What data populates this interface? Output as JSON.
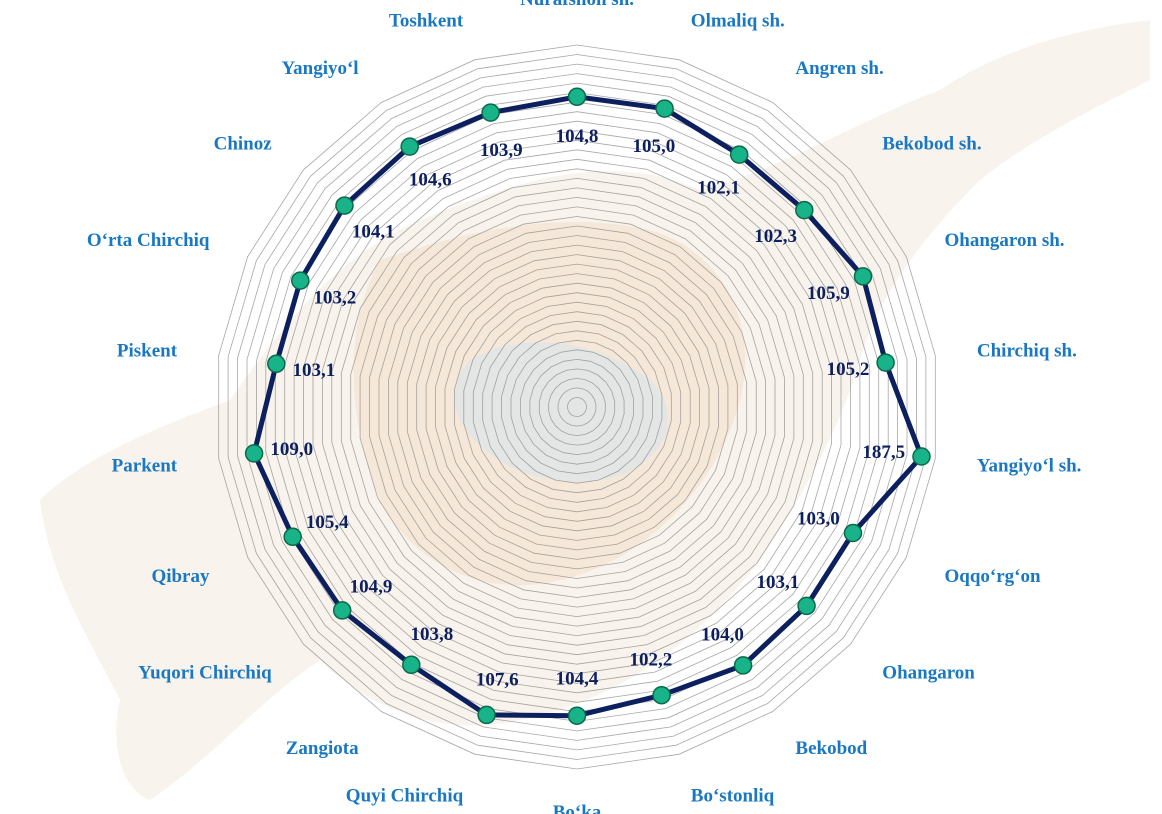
{
  "chart_data": {
    "type": "radar",
    "title": "",
    "categories": [
      "Nurafshon sh.",
      "Olmaliq sh.",
      "Angren sh.",
      "Bekobod sh.",
      "Ohangaron sh.",
      "Chirchiq sh.",
      "Yangiyo‘l sh.",
      "Oqqo‘rg‘on",
      "Ohangaron",
      "Bekobod",
      "Bo‘stonliq",
      "Bo‘ka",
      "Quyi Chirchiq",
      "Zangiota",
      "Yuqori Chirchiq",
      "Qibray",
      "Parkent",
      "Piskent",
      "O‘rta Chirchiq",
      "Chinoz",
      "Yangiyo‘l",
      "Toshkent"
    ],
    "series": [
      {
        "values": [
          104.8,
          105.0,
          102.1,
          102.3,
          105.9,
          105.2,
          187.5,
          103.0,
          103.1,
          104.0,
          102.2,
          104.4,
          107.6,
          103.8,
          104.9,
          105.4,
          109.0,
          103.1,
          103.2,
          104.1,
          104.6,
          103.9
        ],
        "value_labels": [
          "104,8",
          "105,0",
          "102,1",
          "102,3",
          "105,9",
          "105,2",
          "187,5",
          "103,0",
          "103,1",
          "104,0",
          "102,2",
          "104,4",
          "107,6",
          "103,8",
          "104,9",
          "105,4",
          "109,0",
          "103,1",
          "103,2",
          "104,1",
          "104,6",
          "103,9"
        ]
      }
    ],
    "rings": 38,
    "grid": true,
    "legend": "none",
    "colors": {
      "line": "#0c1f5e",
      "marker_fill": "#19b389",
      "marker_stroke": "#0a6a4a",
      "category_label": "#1a78c2",
      "value_label": "#0c1f5e",
      "grid": "#8a8a8a"
    }
  },
  "background_icon": "tashkent-region-map"
}
